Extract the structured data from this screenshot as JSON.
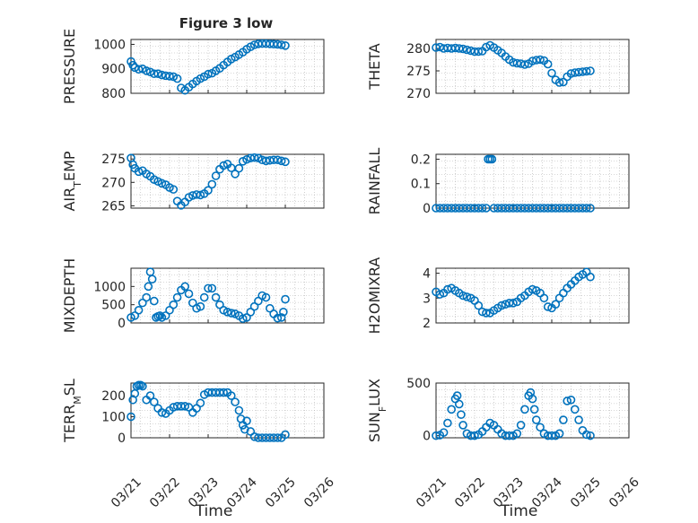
{
  "figure_title": "Figure 3 low",
  "marker_color": "#0072BD",
  "shared_xlabel": "Time",
  "x_ticklabels": [
    "03/21",
    "03/22",
    "03/23",
    "03/24",
    "03/25",
    "03/26"
  ],
  "chart_data": [
    {
      "type": "scatter",
      "marker": "open-circle",
      "ylabel": "PRESSURE",
      "xlim": [
        0,
        5
      ],
      "ylim": [
        800,
        1020
      ],
      "yticks": [
        800,
        900,
        1000
      ],
      "x": [
        0,
        0.05,
        0.1,
        0.2,
        0.3,
        0.4,
        0.5,
        0.6,
        0.7,
        0.8,
        0.9,
        1.0,
        1.1,
        1.2,
        1.3,
        1.4,
        1.5,
        1.6,
        1.7,
        1.8,
        1.9,
        2.0,
        2.1,
        2.2,
        2.3,
        2.4,
        2.5,
        2.6,
        2.7,
        2.8,
        2.9,
        3.0,
        3.1,
        3.2,
        3.3,
        3.4,
        3.5,
        3.6,
        3.7,
        3.8,
        3.9,
        4.0
      ],
      "y": [
        930,
        915,
        905,
        898,
        900,
        892,
        887,
        880,
        880,
        875,
        872,
        870,
        868,
        860,
        822,
        812,
        825,
        838,
        850,
        860,
        868,
        878,
        882,
        892,
        902,
        915,
        928,
        940,
        948,
        958,
        968,
        980,
        990,
        998,
        1002,
        1003,
        1003,
        1002,
        1001,
        1000,
        998,
        995
      ]
    },
    {
      "type": "scatter",
      "marker": "open-circle",
      "ylabel": "THETA",
      "xlim": [
        0,
        5
      ],
      "ylim": [
        270,
        282
      ],
      "yticks": [
        270,
        275,
        280
      ],
      "x": [
        0,
        0.1,
        0.2,
        0.3,
        0.4,
        0.5,
        0.6,
        0.7,
        0.8,
        0.9,
        1.0,
        1.1,
        1.2,
        1.3,
        1.4,
        1.5,
        1.6,
        1.7,
        1.8,
        1.9,
        2.0,
        2.1,
        2.2,
        2.3,
        2.4,
        2.5,
        2.6,
        2.7,
        2.8,
        2.9,
        3.0,
        3.1,
        3.2,
        3.3,
        3.4,
        3.5,
        3.6,
        3.7,
        3.8,
        3.9,
        4.0
      ],
      "y": [
        280.2,
        280.3,
        280.0,
        280.1,
        280.0,
        280.1,
        280.0,
        279.9,
        279.7,
        279.5,
        279.3,
        279.3,
        279.4,
        280.3,
        280.7,
        280.2,
        279.6,
        279.0,
        278.2,
        277.5,
        276.9,
        276.7,
        276.6,
        276.4,
        276.6,
        277.2,
        277.4,
        277.5,
        277.3,
        276.5,
        274.5,
        273.0,
        272.4,
        272.5,
        273.7,
        274.4,
        274.6,
        274.7,
        274.8,
        274.9,
        275.0
      ]
    },
    {
      "type": "scatter",
      "marker": "open-circle",
      "ylabel": "AIR_TEMP",
      "xlim": [
        0,
        5
      ],
      "ylim": [
        264.5,
        276
      ],
      "yticks": [
        265,
        270,
        275
      ],
      "x": [
        0,
        0.05,
        0.1,
        0.2,
        0.3,
        0.4,
        0.5,
        0.6,
        0.7,
        0.8,
        0.9,
        1.0,
        1.1,
        1.2,
        1.3,
        1.4,
        1.5,
        1.6,
        1.7,
        1.8,
        1.9,
        2.0,
        2.1,
        2.2,
        2.3,
        2.4,
        2.5,
        2.6,
        2.7,
        2.8,
        2.9,
        3.0,
        3.1,
        3.2,
        3.3,
        3.4,
        3.5,
        3.6,
        3.7,
        3.8,
        3.9,
        4.0
      ],
      "y": [
        275.2,
        273.8,
        273.0,
        272.3,
        272.5,
        271.8,
        271.3,
        270.6,
        270.2,
        269.8,
        269.5,
        268.9,
        268.5,
        266.0,
        265.1,
        265.8,
        266.8,
        267.2,
        267.4,
        267.3,
        267.6,
        268.3,
        269.6,
        271.4,
        272.8,
        273.6,
        273.9,
        273.1,
        271.8,
        273.0,
        274.5,
        274.9,
        275.2,
        275.3,
        275.2,
        274.8,
        274.6,
        274.7,
        274.8,
        274.8,
        274.6,
        274.4
      ]
    },
    {
      "type": "scatter",
      "marker": "open-circle",
      "ylabel": "RAINFALL",
      "xlim": [
        0,
        5
      ],
      "ylim": [
        0,
        0.22
      ],
      "yticks": [
        0,
        0.1,
        0.2
      ],
      "ytickformat": [
        "0",
        "0.1",
        "0.2"
      ],
      "x": [
        0,
        0.1,
        0.2,
        0.3,
        0.4,
        0.5,
        0.6,
        0.7,
        0.8,
        0.9,
        1.0,
        1.1,
        1.2,
        1.3,
        1.35,
        1.4,
        1.45,
        1.5,
        1.6,
        1.7,
        1.8,
        1.9,
        2.0,
        2.1,
        2.2,
        2.3,
        2.4,
        2.5,
        2.6,
        2.7,
        2.8,
        2.9,
        3.0,
        3.1,
        3.2,
        3.3,
        3.4,
        3.5,
        3.6,
        3.7,
        3.8,
        3.9,
        4.0
      ],
      "y": [
        0,
        0,
        0,
        0,
        0,
        0,
        0,
        0,
        0,
        0,
        0,
        0,
        0,
        0,
        0.2,
        0.2,
        0.2,
        0,
        0,
        0,
        0,
        0,
        0,
        0,
        0,
        0,
        0,
        0,
        0,
        0,
        0,
        0,
        0,
        0,
        0,
        0,
        0,
        0,
        0,
        0,
        0,
        0,
        0
      ]
    },
    {
      "type": "scatter",
      "marker": "open-circle",
      "ylabel": "MIXDEPTH",
      "xlim": [
        0,
        5
      ],
      "ylim": [
        0,
        1500
      ],
      "yticks": [
        0,
        500,
        1000
      ],
      "x": [
        0,
        0.1,
        0.2,
        0.3,
        0.4,
        0.45,
        0.5,
        0.55,
        0.6,
        0.65,
        0.7,
        0.75,
        0.8,
        0.9,
        1.0,
        1.1,
        1.2,
        1.3,
        1.4,
        1.5,
        1.6,
        1.7,
        1.8,
        1.9,
        2.0,
        2.1,
        2.2,
        2.3,
        2.4,
        2.5,
        2.6,
        2.7,
        2.8,
        2.9,
        3.0,
        3.1,
        3.2,
        3.3,
        3.4,
        3.5,
        3.6,
        3.7,
        3.8,
        3.9,
        3.95,
        4.0
      ],
      "y": [
        150,
        200,
        350,
        550,
        700,
        1000,
        1400,
        1200,
        600,
        150,
        180,
        200,
        150,
        200,
        350,
        500,
        700,
        900,
        1000,
        800,
        550,
        400,
        450,
        700,
        950,
        950,
        700,
        500,
        350,
        300,
        270,
        250,
        200,
        120,
        150,
        300,
        450,
        600,
        750,
        700,
        400,
        250,
        130,
        150,
        300,
        650
      ]
    },
    {
      "type": "scatter",
      "marker": "open-circle",
      "ylabel": "H2OMIXRA",
      "xlim": [
        0,
        5
      ],
      "ylim": [
        2,
        4.2
      ],
      "yticks": [
        2,
        3,
        4
      ],
      "x": [
        0,
        0.1,
        0.2,
        0.3,
        0.4,
        0.5,
        0.6,
        0.7,
        0.8,
        0.9,
        1.0,
        1.1,
        1.2,
        1.3,
        1.4,
        1.5,
        1.6,
        1.7,
        1.8,
        1.9,
        2.0,
        2.1,
        2.2,
        2.3,
        2.4,
        2.5,
        2.6,
        2.7,
        2.8,
        2.9,
        3.0,
        3.1,
        3.2,
        3.3,
        3.4,
        3.5,
        3.6,
        3.7,
        3.8,
        3.9,
        4.0
      ],
      "y": [
        3.25,
        3.15,
        3.2,
        3.35,
        3.4,
        3.3,
        3.2,
        3.1,
        3.05,
        3.0,
        2.9,
        2.7,
        2.45,
        2.4,
        2.4,
        2.5,
        2.6,
        2.7,
        2.75,
        2.8,
        2.8,
        2.85,
        3.0,
        3.1,
        3.25,
        3.35,
        3.3,
        3.2,
        3.0,
        2.65,
        2.6,
        2.75,
        3.0,
        3.2,
        3.4,
        3.55,
        3.7,
        3.85,
        3.95,
        4.05,
        3.85
      ]
    },
    {
      "type": "scatter",
      "marker": "open-circle",
      "ylabel": "TERR_MSL",
      "xlim": [
        0,
        5
      ],
      "ylim": [
        0,
        260
      ],
      "yticks": [
        0,
        100,
        200
      ],
      "x": [
        0,
        0.05,
        0.1,
        0.15,
        0.2,
        0.25,
        0.3,
        0.4,
        0.5,
        0.6,
        0.7,
        0.8,
        0.9,
        1.0,
        1.1,
        1.2,
        1.3,
        1.4,
        1.5,
        1.6,
        1.7,
        1.8,
        1.9,
        2.0,
        2.1,
        2.2,
        2.3,
        2.4,
        2.5,
        2.6,
        2.7,
        2.8,
        2.85,
        2.9,
        2.95,
        3.0,
        3.1,
        3.2,
        3.3,
        3.4,
        3.5,
        3.6,
        3.7,
        3.8,
        3.9,
        4.0
      ],
      "y": [
        100,
        180,
        210,
        245,
        250,
        250,
        245,
        180,
        200,
        170,
        140,
        120,
        115,
        130,
        145,
        150,
        150,
        150,
        145,
        120,
        140,
        165,
        205,
        215,
        215,
        215,
        215,
        215,
        215,
        200,
        170,
        130,
        90,
        60,
        40,
        80,
        30,
        5,
        0,
        0,
        0,
        0,
        0,
        0,
        0,
        15
      ]
    },
    {
      "type": "scatter",
      "marker": "open-circle",
      "ylabel": "SUN_FLUX",
      "xlim": [
        0,
        5
      ],
      "ylim": [
        -20,
        500
      ],
      "yticks": [
        0,
        500
      ],
      "x": [
        0,
        0.1,
        0.2,
        0.3,
        0.4,
        0.5,
        0.55,
        0.6,
        0.65,
        0.7,
        0.8,
        0.9,
        1.0,
        1.1,
        1.2,
        1.3,
        1.4,
        1.5,
        1.6,
        1.7,
        1.8,
        1.9,
        2.0,
        2.1,
        2.2,
        2.3,
        2.4,
        2.45,
        2.5,
        2.55,
        2.6,
        2.7,
        2.8,
        2.9,
        3.0,
        3.1,
        3.2,
        3.3,
        3.4,
        3.5,
        3.6,
        3.7,
        3.8,
        3.9,
        4.0
      ],
      "y": [
        0,
        5,
        30,
        120,
        250,
        350,
        380,
        300,
        200,
        100,
        20,
        0,
        0,
        10,
        40,
        80,
        120,
        100,
        60,
        20,
        0,
        0,
        0,
        20,
        100,
        250,
        380,
        410,
        350,
        250,
        150,
        80,
        20,
        0,
        0,
        0,
        20,
        150,
        330,
        340,
        250,
        150,
        50,
        10,
        0
      ]
    }
  ]
}
